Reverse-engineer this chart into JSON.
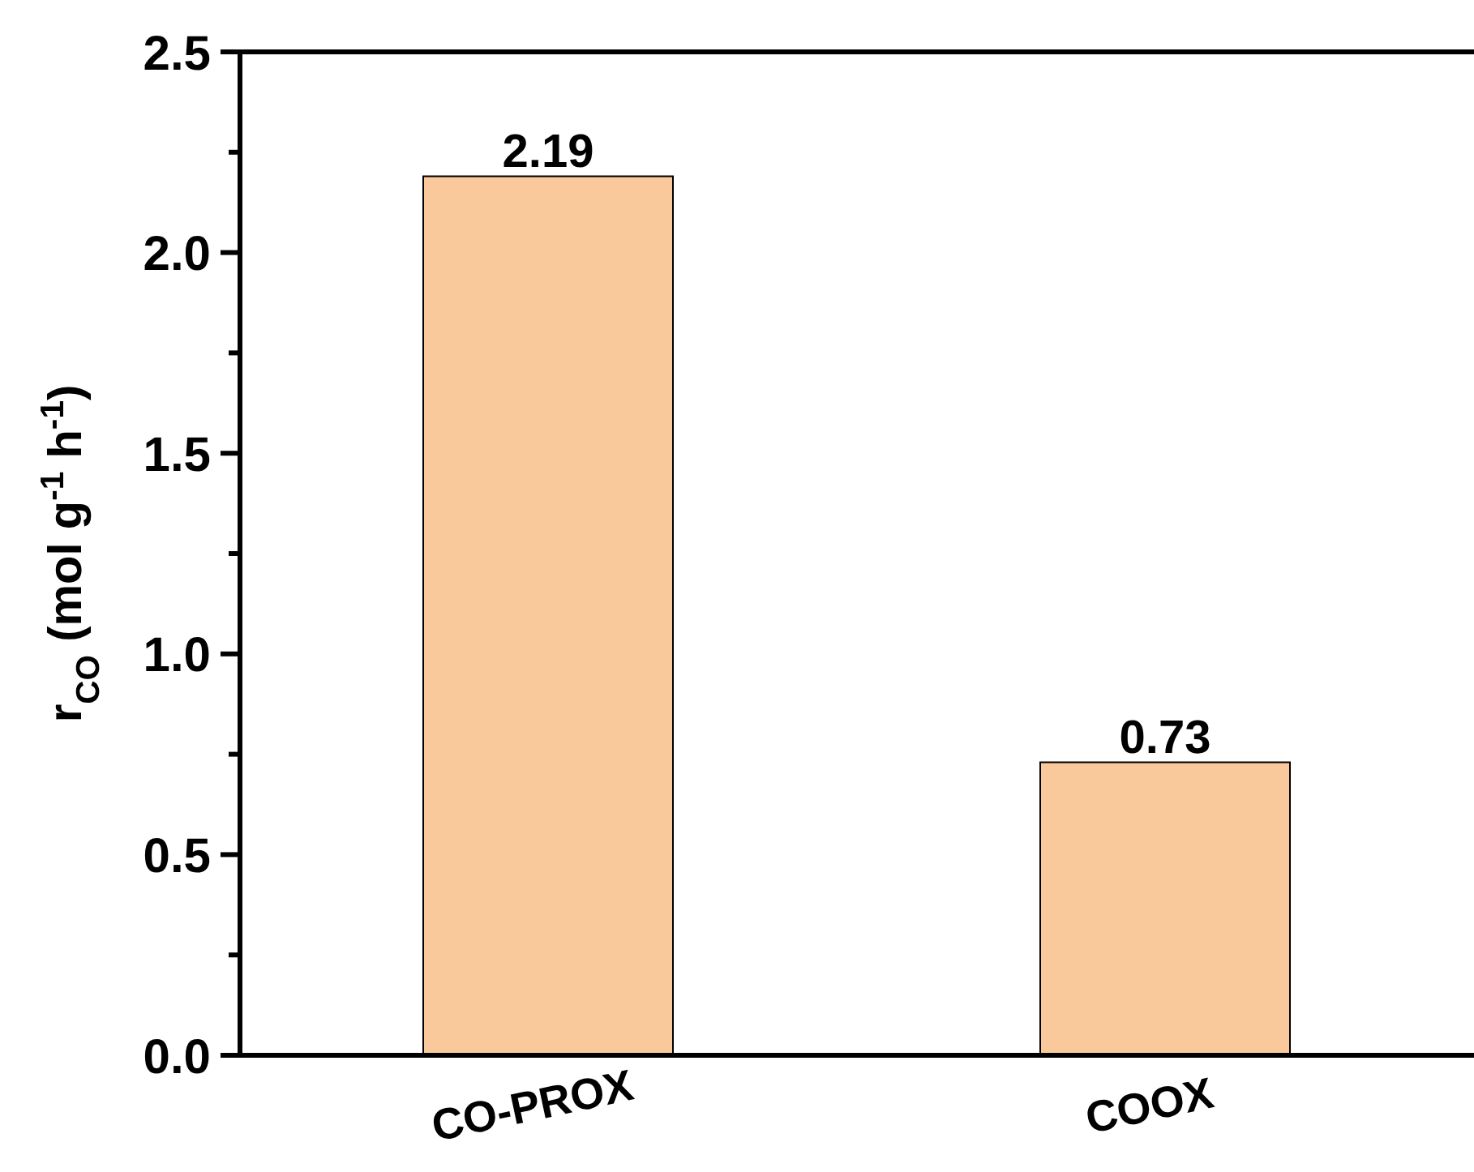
{
  "chart_data": {
    "type": "bar",
    "ylabel": "r$_{CO}$ (mol g$^{-1}$ h$^{-1}$)",
    "categories": [
      "CO-PROX",
      "COOX"
    ],
    "values": [
      2.19,
      0.73
    ],
    "color": "#f9c89b",
    "ylim": [
      0,
      2.5
    ],
    "yticks": [
      {
        "value": 0,
        "label": "0.0"
      },
      {
        "value": 0.25,
        "label": null
      },
      0.5,
      {
        "value": 0.75,
        "label": null
      },
      {
        "value": 1,
        "label": "1.0"
      },
      {
        "value": 1.25,
        "label": null
      },
      1.5,
      {
        "value": 1.75,
        "label": null
      },
      {
        "value": 2,
        "label": "2.0"
      },
      {
        "value": 2.25,
        "label": null
      },
      2.5
    ],
    "data_labels": true
  }
}
